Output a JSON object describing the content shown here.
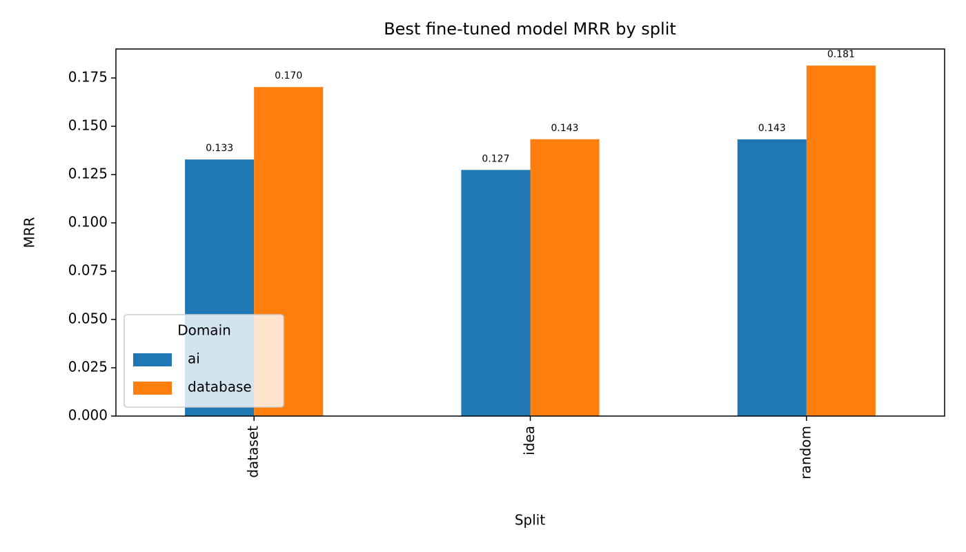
{
  "chart_data": {
    "type": "bar",
    "title": "Best fine-tuned model MRR by split",
    "x_label": "Split",
    "y_label": "MRR",
    "categories": [
      "dataset",
      "idea",
      "random"
    ],
    "legend_title": "Domain",
    "legend_position": "lower left",
    "series": [
      {
        "name": "ai",
        "color": "#1f77b4",
        "values": [
          0.1328,
          0.1274,
          0.1432
        ],
        "value_labels": [
          "0.133",
          "0.127",
          "0.143"
        ]
      },
      {
        "name": "database",
        "color": "#ff7f0e",
        "values": [
          0.1703,
          0.1433,
          0.1814
        ],
        "value_labels": [
          "0.170",
          "0.143",
          "0.181"
        ]
      }
    ],
    "ylim": [
      0,
      0.19
    ],
    "yticks": [
      {
        "value": 0,
        "label": "0.000"
      },
      0.025,
      {
        "value": 0.05,
        "label": "0.050"
      },
      0.075,
      {
        "value": 0.1,
        "label": "0.100"
      },
      0.125,
      {
        "value": 0.15,
        "label": "0.150"
      },
      0.175
    ],
    "grid": false
  }
}
